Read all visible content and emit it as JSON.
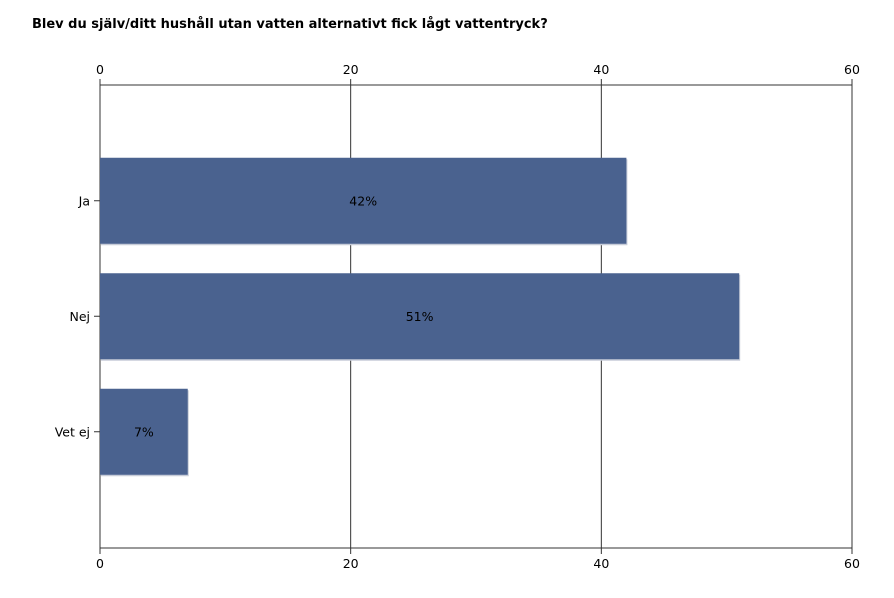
{
  "chart_data": {
    "type": "bar",
    "orientation": "horizontal",
    "title": "Blev du själv/ditt hushåll utan vatten alternativt fick lågt vattentryck?",
    "categories": [
      "Ja",
      "Nej",
      "Vet ej"
    ],
    "values": [
      42,
      51,
      7
    ],
    "data_labels": [
      "42%",
      "51%",
      "7%"
    ],
    "xlim": [
      0,
      60
    ],
    "xticks": [
      0,
      20,
      40,
      60
    ],
    "grid": true,
    "xaxis_position": "top and bottom",
    "colors": {
      "bar": "#4a628f",
      "axis": "#333333",
      "grid": "#333333"
    }
  }
}
